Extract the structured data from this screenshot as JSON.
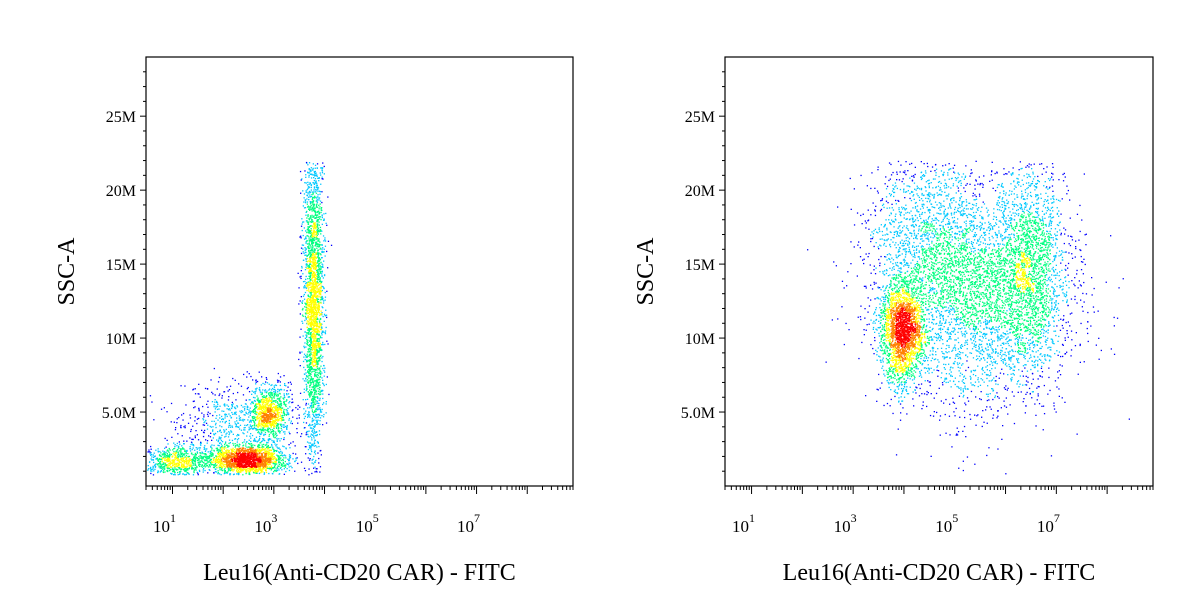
{
  "chart_data": [
    {
      "type": "scatter",
      "subtype": "flow-cytometry-density-dot-plot",
      "title": "",
      "xlabel": "Leu16(Anti-CD20 CAR) - FITC",
      "ylabel": "SSC-A",
      "x_scale": "log",
      "xlim": [
        3,
        800000000
      ],
      "ylim": [
        0,
        29000000
      ],
      "x_ticks": [
        {
          "value": 10,
          "base": "10",
          "exp": "1"
        },
        {
          "value": 1000,
          "base": "10",
          "exp": "3"
        },
        {
          "value": 100000,
          "base": "10",
          "exp": "5"
        },
        {
          "value": 10000000,
          "base": "10",
          "exp": "7"
        }
      ],
      "y_ticks": [
        {
          "value": 5000000,
          "label": "5.0M"
        },
        {
          "value": 10000000,
          "label": "10M"
        },
        {
          "value": 15000000,
          "label": "15M"
        },
        {
          "value": 20000000,
          "label": "20M"
        },
        {
          "value": 25000000,
          "label": "25M"
        }
      ],
      "grid": false,
      "legend": "none",
      "color_scale": [
        "#0000ff",
        "#00c8ff",
        "#00ff80",
        "#ffff00",
        "#ff8000",
        "#ff0000"
      ],
      "populations": [
        {
          "x_center": 300,
          "y_center": 1800000,
          "count": 1800,
          "log_sd_x": 0.38,
          "sd_y": 500000
        },
        {
          "x_center": 12,
          "y_center": 1700000,
          "count": 700,
          "log_sd_x": 0.35,
          "sd_y": 500000
        },
        {
          "x_center": 800,
          "y_center": 5000000,
          "count": 900,
          "log_sd_x": 0.2,
          "sd_y": 900000
        },
        {
          "x_center": 6000,
          "y_center": 12500000,
          "count": 2600,
          "log_sd_x": 0.1,
          "sd_y": 5500000
        },
        {
          "x_center": 120,
          "y_center": 4000000,
          "count": 600,
          "log_sd_x": 0.55,
          "sd_y": 1500000
        }
      ]
    },
    {
      "type": "scatter",
      "subtype": "flow-cytometry-density-dot-plot",
      "title": "",
      "xlabel": "Leu16(Anti-CD20 CAR) - FITC",
      "ylabel": "SSC-A",
      "x_scale": "log",
      "xlim": [
        3,
        800000000
      ],
      "ylim": [
        0,
        29000000
      ],
      "x_ticks": [
        {
          "value": 10,
          "base": "10",
          "exp": "1"
        },
        {
          "value": 1000,
          "base": "10",
          "exp": "3"
        },
        {
          "value": 100000,
          "base": "10",
          "exp": "5"
        },
        {
          "value": 10000000,
          "base": "10",
          "exp": "7"
        }
      ],
      "y_ticks": [
        {
          "value": 5000000,
          "label": "5.0M"
        },
        {
          "value": 10000000,
          "label": "10M"
        },
        {
          "value": 15000000,
          "label": "15M"
        },
        {
          "value": 20000000,
          "label": "20M"
        },
        {
          "value": 25000000,
          "label": "25M"
        }
      ],
      "grid": false,
      "legend": "none",
      "color_scale": [
        "#0000ff",
        "#00c8ff",
        "#00ff80",
        "#ffff00",
        "#ff8000",
        "#ff0000"
      ],
      "populations": [
        {
          "x_center": 9000,
          "y_center": 10500000,
          "count": 2200,
          "log_sd_x": 0.22,
          "sd_y": 1800000
        },
        {
          "x_center": 300000,
          "y_center": 13000000,
          "count": 3500,
          "log_sd_x": 0.9,
          "sd_y": 3800000
        },
        {
          "x_center": 3000000,
          "y_center": 15000000,
          "count": 1500,
          "log_sd_x": 0.3,
          "sd_y": 3500000
        },
        {
          "x_center": 30000,
          "y_center": 17000000,
          "count": 1200,
          "log_sd_x": 0.6,
          "sd_y": 3000000
        }
      ]
    }
  ]
}
